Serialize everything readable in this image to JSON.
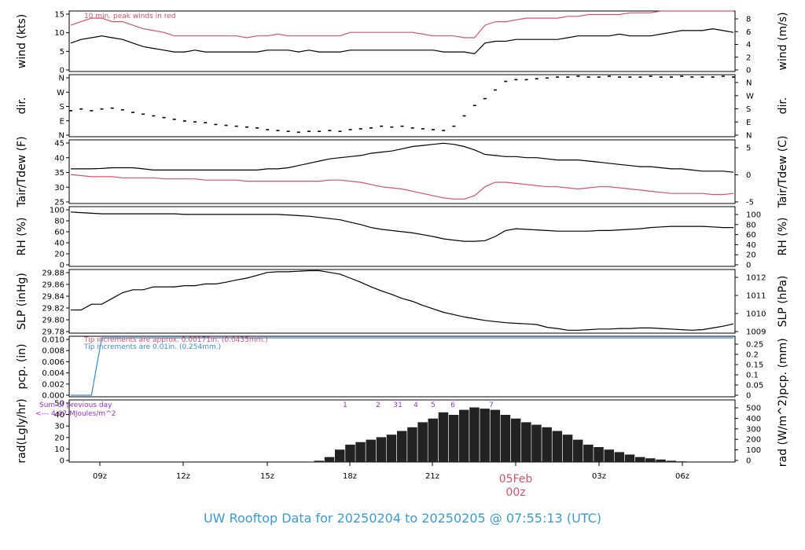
{
  "title": "UW Rooftop Data for 20250204  to  20250205 @ 07:55:13  (UTC)",
  "colors": {
    "title": "#3a9ad9",
    "red": "#d9506a",
    "blue": "#3a8ad9",
    "purple": "#9932cc",
    "line": "#000000"
  },
  "annotations": {
    "wind_note": "10 min. peak winds in red",
    "pcp_red_note": "Tip increments are approx. 0.00171in. (0.0435mm.)",
    "pcp_blue_note": "Tip increments are 0.01in. (0.254mm.)",
    "rad_sum_line1": "Sum of previous day",
    "rad_sum_line2": "<--- 4.07 MJoules/m^2",
    "date_label": "05Feb",
    "date_sublabel": "00z"
  },
  "chart_data": [
    {
      "type": "line",
      "panel": "wind",
      "ylabel_left": "wind (kts)",
      "ylabel_right": "wind (m/s)",
      "ylim": [
        0,
        17
      ],
      "yticks_left": [
        "0",
        "5",
        "10",
        "15"
      ],
      "yticks_right": [
        "0",
        "2",
        "4",
        "6",
        "8"
      ],
      "series": [
        {
          "values": [
            8,
            9,
            9.5,
            10,
            9.5,
            9,
            8,
            7,
            6.5,
            6,
            5.5,
            5.5,
            6,
            5.5,
            5.5,
            5.5,
            5.5,
            5.5,
            5.5,
            6,
            6,
            6,
            5.5,
            6,
            5.5,
            5.5,
            5.5,
            6,
            6,
            6,
            6,
            6,
            6,
            6,
            6,
            6,
            5.5,
            5.5,
            5.5,
            5,
            8,
            8.5,
            8.5,
            9,
            9,
            9,
            9,
            9,
            9.5,
            10,
            10,
            10,
            10,
            10.5,
            10,
            10,
            10,
            10.5,
            11,
            11.5,
            11.5,
            11.5,
            12,
            11.5,
            11
          ]
        },
        {
          "values": [
            13,
            14,
            15,
            15,
            14,
            14,
            13,
            12,
            11.5,
            11,
            10,
            10,
            10,
            10,
            10,
            10,
            10,
            9.5,
            10,
            10,
            10.5,
            10,
            10,
            10,
            10,
            10,
            10,
            11,
            11,
            11,
            11,
            11,
            11,
            11,
            10.5,
            10,
            10,
            10,
            9.5,
            9.5,
            13,
            14,
            14,
            14.5,
            15,
            15,
            15,
            15,
            15.5,
            15.5,
            16,
            16,
            16,
            16,
            16.5,
            16.5,
            16.5,
            17,
            17,
            17,
            17,
            17,
            17,
            17,
            17
          ]
        }
      ]
    },
    {
      "type": "scatter",
      "panel": "direction",
      "ylabel_left": "dir.",
      "ylabel_right": "dir.",
      "ylim": [
        0,
        360
      ],
      "yticks_left": [
        "N",
        "E",
        "S",
        "W",
        "N"
      ],
      "yticks_right": [
        "N",
        "E",
        "S",
        "W",
        "N"
      ],
      "series": [
        {
          "values": [
            150,
            160,
            150,
            160,
            165,
            155,
            140,
            130,
            120,
            110,
            100,
            90,
            85,
            80,
            70,
            65,
            60,
            55,
            50,
            40,
            35,
            30,
            25,
            30,
            30,
            35,
            30,
            40,
            45,
            50,
            60,
            55,
            60,
            50,
            45,
            40,
            35,
            60,
            120,
            180,
            220,
            270,
            320,
            330,
            330,
            335,
            340,
            345,
            345,
            350,
            345,
            345,
            350,
            345,
            345,
            345,
            350,
            345,
            345,
            350,
            345,
            345,
            345,
            350,
            345
          ]
        }
      ]
    },
    {
      "type": "line",
      "panel": "temperature",
      "ylabel_left": "Tair/Tdew (F)",
      "ylabel_right": "Tair/Tdew (C)",
      "ylim": [
        20.5,
        49
      ],
      "yticks_left": [
        "25",
        "30",
        "35",
        "40",
        "45"
      ],
      "yticks_right": [
        "-5",
        "0",
        "5"
      ],
      "series": [
        {
          "values": [
            36,
            36,
            36,
            36.2,
            36.5,
            36.5,
            36.5,
            36,
            35.5,
            35.5,
            35.5,
            35.5,
            35.5,
            35.5,
            35.5,
            35.5,
            35.5,
            35.5,
            35.5,
            36,
            36,
            36.5,
            37.5,
            38.5,
            39.5,
            40.5,
            41,
            41.5,
            42,
            43,
            43.5,
            44,
            45,
            46,
            46.5,
            47,
            47.5,
            47,
            46,
            44.5,
            42.5,
            42,
            41.5,
            41.5,
            41,
            41,
            40.5,
            40,
            40,
            40,
            39.5,
            39,
            38.5,
            38,
            37.5,
            37,
            37,
            36.5,
            36,
            36,
            35.5,
            35,
            35,
            35,
            34.5
          ]
        },
        {
          "values": [
            33.5,
            33,
            32.5,
            32.5,
            32.5,
            32,
            32,
            32,
            32,
            31.5,
            31.5,
            31.5,
            31.5,
            31,
            31,
            31,
            31,
            30.5,
            30.5,
            30.5,
            30.5,
            30.5,
            30.5,
            30.5,
            30.5,
            31,
            31,
            30.5,
            30,
            29,
            28,
            27.5,
            27,
            26,
            25,
            24,
            23,
            22.5,
            22.5,
            24,
            28,
            30,
            30,
            29.5,
            29,
            28.5,
            28,
            28,
            27.5,
            27,
            27.5,
            28,
            28,
            27.5,
            27,
            26.5,
            26,
            25.5,
            25,
            25,
            25,
            25,
            24.5,
            24.5,
            25
          ]
        }
      ]
    },
    {
      "type": "line",
      "panel": "humidity",
      "ylabel_left": "RH (%)",
      "ylabel_right": "RH (%)",
      "ylim": [
        0,
        100
      ],
      "yticks_left": [
        "0",
        "20",
        "40",
        "60",
        "80",
        "100"
      ],
      "yticks_right": [
        "0",
        "20",
        "40",
        "60",
        "80",
        "100"
      ],
      "series": [
        {
          "values": [
            91,
            90,
            89,
            88,
            88,
            88,
            88,
            88,
            88,
            88,
            88,
            87,
            87,
            87,
            87,
            87,
            87,
            87,
            87,
            87,
            87,
            86,
            85,
            84,
            82,
            80,
            78,
            74,
            70,
            65,
            62,
            60,
            58,
            56,
            53,
            50,
            46,
            44,
            42,
            42,
            43,
            50,
            60,
            63,
            62,
            61,
            60,
            59,
            59,
            59,
            59,
            60,
            60,
            61,
            62,
            63,
            65,
            66,
            67,
            67,
            67,
            67,
            66,
            65,
            65
          ]
        }
      ]
    },
    {
      "type": "line",
      "panel": "pressure",
      "ylabel_left": "SLP (inHg)",
      "ylabel_right": "SLP (hPa)",
      "ylim": [
        29.78,
        29.89
      ],
      "yticks_left": [
        "29.78",
        "29.80",
        "29.82",
        "29.84",
        "29.86",
        "29.88"
      ],
      "yticks_right": [
        "1009",
        "1010",
        "1011",
        "1012"
      ],
      "series": [
        {
          "values": [
            29.82,
            29.82,
            29.83,
            29.83,
            29.84,
            29.85,
            29.855,
            29.855,
            29.86,
            29.86,
            29.86,
            29.862,
            29.862,
            29.865,
            29.865,
            29.868,
            29.872,
            29.875,
            29.88,
            29.885,
            29.886,
            29.886,
            29.887,
            29.888,
            29.888,
            29.885,
            29.882,
            29.875,
            29.868,
            29.86,
            29.853,
            29.847,
            29.84,
            29.835,
            29.828,
            29.822,
            29.816,
            29.812,
            29.808,
            29.805,
            29.802,
            29.8,
            29.798,
            29.797,
            29.796,
            29.795,
            29.79,
            29.788,
            29.785,
            29.785,
            29.786,
            29.787,
            29.787,
            29.788,
            29.788,
            29.789,
            29.789,
            29.788,
            29.787,
            29.786,
            29.785,
            29.786,
            29.789,
            29.792,
            29.796
          ]
        }
      ]
    },
    {
      "type": "line",
      "panel": "precipitation",
      "ylabel_left": "pcp. (in)",
      "ylabel_right": "pcp. (mm)",
      "ylim": [
        0,
        0.01
      ],
      "yticks_left": [
        "0.000",
        "0.002",
        "0.004",
        "0.006",
        "0.008",
        "0.010"
      ],
      "yticks_right": [
        "0",
        "0.05",
        "0.1",
        "0.15",
        "0.2",
        "0.25"
      ],
      "series": [
        {
          "values": [
            0,
            0,
            0,
            0.01,
            0.01,
            0.01,
            0.01,
            0.01,
            0.01,
            0.01,
            0.01,
            0.01,
            0.01,
            0.01,
            0.01,
            0.01,
            0.01,
            0.01,
            0.01,
            0.01,
            0.01,
            0.01,
            0.01,
            0.01,
            0.01,
            0.01,
            0.01,
            0.01,
            0.01,
            0.01,
            0.01,
            0.01,
            0.01,
            0.01,
            0.01,
            0.01,
            0.01,
            0.01,
            0.01,
            0.01,
            0.01,
            0.01,
            0.01,
            0.01,
            0.01,
            0.01,
            0.01,
            0.01,
            0.01,
            0.01,
            0.01,
            0.01,
            0.01,
            0.01,
            0.01,
            0.01,
            0.01,
            0.01,
            0.01,
            0.01,
            0.01,
            0.01,
            0.01,
            0.01,
            0.01
          ]
        }
      ]
    },
    {
      "type": "bar",
      "panel": "radiation",
      "ylabel_left": "rad(Lgly/hr)",
      "ylabel_right": "rad (W/m^2)",
      "ylim": [
        0,
        50
      ],
      "yticks_left": [
        "0",
        "10",
        "20",
        "30",
        "40",
        "50"
      ],
      "yticks_right": [
        "0",
        "100",
        "200",
        "300",
        "400",
        "500"
      ],
      "markers": [
        "1",
        "2",
        "3",
        "1",
        "4",
        "5",
        "6",
        "7"
      ],
      "series": [
        {
          "values": [
            0,
            0,
            0,
            0,
            0,
            0,
            0,
            0,
            0,
            0,
            0,
            0,
            0,
            0,
            0,
            0,
            0,
            0,
            0,
            0,
            0,
            0,
            0,
            0,
            1,
            4,
            10,
            14,
            16,
            18,
            20,
            22,
            25,
            28,
            32,
            35,
            40,
            38,
            42,
            44,
            43,
            42,
            38,
            35,
            32,
            30,
            28,
            25,
            22,
            18,
            14,
            12,
            10,
            8,
            6,
            4,
            3,
            2,
            1,
            0.5,
            0,
            0,
            0,
            0,
            0
          ]
        }
      ]
    }
  ],
  "xaxis": {
    "ticks": [
      "09z",
      "12z",
      "15z",
      "18z",
      "21z",
      "00z",
      "03z",
      "06z"
    ]
  }
}
